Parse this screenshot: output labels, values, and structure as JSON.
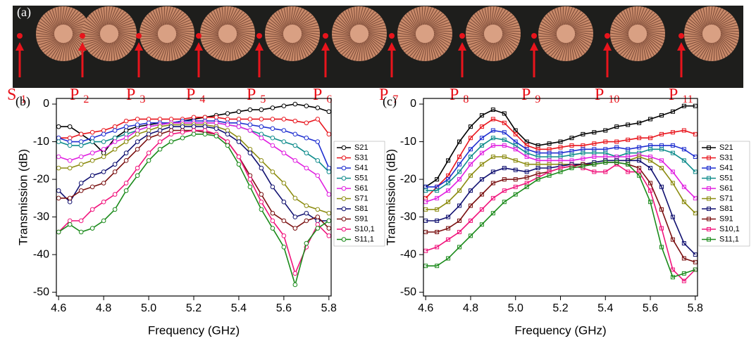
{
  "photo": {
    "panel_label": "(a)",
    "ports": [
      {
        "letter": "S",
        "sub": "1"
      },
      {
        "letter": "P",
        "sub": "2"
      },
      {
        "letter": "P",
        "sub": "3"
      },
      {
        "letter": "P",
        "sub": "4"
      },
      {
        "letter": "P",
        "sub": "5"
      },
      {
        "letter": "P",
        "sub": "6"
      },
      {
        "letter": "P",
        "sub": "7"
      },
      {
        "letter": "P",
        "sub": "8"
      },
      {
        "letter": "P",
        "sub": "9"
      },
      {
        "letter": "P",
        "sub": "10"
      },
      {
        "letter": "P",
        "sub": "11"
      }
    ]
  },
  "chart_data": [
    {
      "type": "line",
      "panel_label": "(b)",
      "x_label": "Frequency (GHz)",
      "y_label": "Transmission (dB)",
      "marker": "circle",
      "xlim": [
        4.59,
        5.81
      ],
      "ylim": [
        -51,
        1.5
      ],
      "xticks": [
        4.6,
        4.8,
        {
          "value": 5,
          "label": "5.0"
        },
        5.2,
        5.4,
        5.6,
        5.8
      ],
      "yticks": [
        0,
        -10,
        -20,
        -30,
        -40,
        -50
      ],
      "x": [
        4.6,
        4.65,
        4.7,
        4.75,
        4.8,
        4.85,
        4.9,
        4.95,
        5.0,
        5.05,
        5.1,
        5.15,
        5.2,
        5.25,
        5.3,
        5.35,
        5.4,
        5.45,
        5.5,
        5.55,
        5.6,
        5.65,
        5.7,
        5.75,
        5.8
      ],
      "series": [
        {
          "name": "S21",
          "color": "#000000",
          "values": [
            -6,
            -6,
            -8,
            -10,
            -13,
            -9,
            -7,
            -6,
            -5.5,
            -5,
            -5,
            -4.5,
            -4,
            -3.5,
            -3,
            -2.5,
            -2,
            -1.5,
            -1.5,
            -1,
            -0.5,
            0,
            -0.5,
            -1,
            -2
          ]
        },
        {
          "name": "S31",
          "color": "#e8141c",
          "values": [
            -9,
            -9,
            -8,
            -7.5,
            -7,
            -6,
            -4.5,
            -4,
            -4,
            -4,
            -4,
            -4,
            -3.5,
            -3.5,
            -3.5,
            -4,
            -4,
            -4,
            -4,
            -4,
            -4,
            -4.5,
            -5,
            -4,
            -8
          ]
        },
        {
          "name": "S41",
          "color": "#1f2fd0",
          "values": [
            -9,
            -10,
            -10,
            -9,
            -8,
            -7,
            -6,
            -5.5,
            -5,
            -5,
            -5,
            -4.5,
            -4.5,
            -4.5,
            -4.5,
            -5,
            -5,
            -5.5,
            -6,
            -6.5,
            -7,
            -8,
            -9,
            -10,
            -17
          ]
        },
        {
          "name": "S51",
          "color": "#0f8c8c",
          "values": [
            -10,
            -11,
            -11,
            -10,
            -10,
            -9,
            -8,
            -7,
            -6,
            -5.5,
            -5,
            -5,
            -5,
            -5,
            -5,
            -5.5,
            -6,
            -7,
            -8,
            -9,
            -10,
            -11,
            -13,
            -15,
            -18
          ]
        },
        {
          "name": "S61",
          "color": "#e020e0",
          "values": [
            -14,
            -15,
            -14,
            -13,
            -12,
            -10,
            -9,
            -7,
            -6,
            -5.5,
            -5,
            -5,
            -5,
            -5,
            -5,
            -5.5,
            -6,
            -7,
            -9,
            -11,
            -13,
            -15,
            -17,
            -19,
            -24
          ]
        },
        {
          "name": "S71",
          "color": "#8c8c10",
          "values": [
            -17,
            -17,
            -16,
            -15,
            -14,
            -12,
            -10,
            -8,
            -7,
            -6,
            -5.5,
            -5.5,
            -5.5,
            -5.5,
            -6,
            -7,
            -9,
            -12,
            -15,
            -18,
            -21,
            -25,
            -27,
            -28,
            -29
          ]
        },
        {
          "name": "S81",
          "color": "#101070",
          "values": [
            -23,
            -26,
            -21,
            -19,
            -18,
            -16,
            -13,
            -10,
            -8,
            -7,
            -6,
            -6,
            -6,
            -6,
            -6.5,
            -8,
            -10,
            -13,
            -17,
            -22,
            -26,
            -30,
            -29,
            -31,
            -31
          ]
        },
        {
          "name": "S91",
          "color": "#7a1010",
          "values": [
            -25,
            -25,
            -23,
            -22,
            -21,
            -18,
            -15,
            -12,
            -9,
            -8,
            -7,
            -7,
            -7,
            -7.5,
            -8,
            -10,
            -14,
            -19,
            -24,
            -29,
            -31,
            -33,
            -31,
            -30,
            -33
          ]
        },
        {
          "name": "S10,1",
          "color": "#f0147c",
          "values": [
            -34,
            -31,
            -31,
            -28,
            -26,
            -24,
            -21,
            -17,
            -13,
            -10,
            -8,
            -7.5,
            -7,
            -7,
            -8,
            -10,
            -14,
            -20,
            -26,
            -31,
            -35,
            -45,
            -38,
            -32,
            -35
          ]
        },
        {
          "name": "S11,1",
          "color": "#1a8a1a",
          "values": [
            -34,
            -32,
            -34,
            -33,
            -31,
            -28,
            -23,
            -19,
            -15,
            -12,
            -10,
            -9,
            -8,
            -8,
            -8.5,
            -11,
            -16,
            -22,
            -28,
            -33,
            -38,
            -48,
            -37,
            -33,
            -31
          ]
        }
      ]
    },
    {
      "type": "line",
      "panel_label": "(c)",
      "x_label": "Frequency (GHz)",
      "y_label": "Transmission (dB)",
      "marker": "square",
      "xlim": [
        4.59,
        5.81
      ],
      "ylim": [
        -51,
        1.5
      ],
      "xticks": [
        4.6,
        4.8,
        {
          "value": 5,
          "label": "5.0"
        },
        5.2,
        5.4,
        5.6,
        5.8
      ],
      "yticks": [
        0,
        -10,
        -20,
        -30,
        -40,
        -50
      ],
      "x": [
        4.6,
        4.65,
        4.7,
        4.75,
        4.8,
        4.85,
        4.9,
        4.95,
        5.0,
        5.05,
        5.1,
        5.15,
        5.2,
        5.25,
        5.3,
        5.35,
        5.4,
        5.45,
        5.5,
        5.55,
        5.6,
        5.65,
        5.7,
        5.75,
        5.8
      ],
      "series": [
        {
          "name": "S21",
          "color": "#000000",
          "values": [
            -22,
            -20,
            -15,
            -10,
            -6,
            -3,
            -1.5,
            -2.5,
            -7,
            -10,
            -11,
            -10.5,
            -10,
            -9,
            -8,
            -7.5,
            -7,
            -6,
            -5.5,
            -5,
            -4,
            -3,
            -2,
            -0.5,
            -0.5
          ]
        },
        {
          "name": "S31",
          "color": "#e8141c",
          "values": [
            -25,
            -22,
            -19,
            -14,
            -9,
            -6,
            -4,
            -5,
            -8,
            -11,
            -12,
            -12,
            -11.5,
            -11,
            -11,
            -10.5,
            -10,
            -10,
            -9.5,
            -9,
            -9,
            -8,
            -7.5,
            -7,
            -8
          ]
        },
        {
          "name": "S41",
          "color": "#1f2fd0",
          "values": [
            -22,
            -22,
            -20,
            -16,
            -12,
            -9,
            -7,
            -7.5,
            -10,
            -12,
            -13,
            -13,
            -13,
            -12.5,
            -12,
            -12,
            -12,
            -11.5,
            -12,
            -11.5,
            -11,
            -11,
            -11,
            -12,
            -14
          ]
        },
        {
          "name": "S51",
          "color": "#0f8c8c",
          "values": [
            -23,
            -23,
            -21,
            -18,
            -14,
            -11,
            -9,
            -9.5,
            -11,
            -13,
            -14,
            -14,
            -14,
            -13.5,
            -13,
            -13,
            -13,
            -14,
            -13,
            -13,
            -12,
            -12,
            -13,
            -15,
            -18
          ]
        },
        {
          "name": "S61",
          "color": "#e020e0",
          "values": [
            -26,
            -25,
            -23,
            -20,
            -16,
            -13,
            -11,
            -11,
            -12,
            -14,
            -15,
            -15,
            -15,
            -15,
            -14.5,
            -14,
            -14,
            -14,
            -14,
            -13.5,
            -14,
            -15,
            -18,
            -22,
            -25
          ]
        },
        {
          "name": "S71",
          "color": "#8c8c10",
          "values": [
            -28,
            -28,
            -26,
            -23,
            -19,
            -16,
            -14,
            -14,
            -15,
            -16,
            -16,
            -16,
            -16,
            -16,
            -16,
            -15.5,
            -15,
            -15,
            -15,
            -14,
            -15,
            -17,
            -21,
            -26,
            -29
          ]
        },
        {
          "name": "S81",
          "color": "#101070",
          "values": [
            -31,
            -31,
            -30,
            -27,
            -23,
            -20,
            -18,
            -17,
            -17.5,
            -18,
            -17,
            -17,
            -16.5,
            -16,
            -16,
            -15.5,
            -15,
            -15,
            -15,
            -15,
            -17,
            -22,
            -30,
            -37,
            -40
          ]
        },
        {
          "name": "S91",
          "color": "#7a1010",
          "values": [
            -34,
            -34,
            -33,
            -31,
            -27,
            -24,
            -21,
            -20,
            -20,
            -19.5,
            -18.5,
            -18,
            -17,
            -16.5,
            -16,
            -16,
            -15.5,
            -15.5,
            -16,
            -17,
            -21,
            -28,
            -36,
            -41,
            -42
          ]
        },
        {
          "name": "S10,1",
          "color": "#f0147c",
          "values": [
            -39,
            -38,
            -36,
            -34,
            -31,
            -28,
            -25,
            -23,
            -22,
            -21,
            -19.5,
            -18,
            -17,
            -16.5,
            -17,
            -18,
            -18,
            -16,
            -18,
            -18,
            -23,
            -33,
            -44,
            -47,
            -44
          ]
        },
        {
          "name": "S11,1",
          "color": "#1a8a1a",
          "values": [
            -43,
            -43,
            -41,
            -38,
            -35,
            -32,
            -29,
            -26,
            -24,
            -22,
            -20,
            -19,
            -18,
            -17,
            -16.5,
            -16,
            -15.5,
            -15.5,
            -16,
            -19,
            -26,
            -38,
            -46,
            -45,
            -44
          ]
        }
      ]
    }
  ]
}
